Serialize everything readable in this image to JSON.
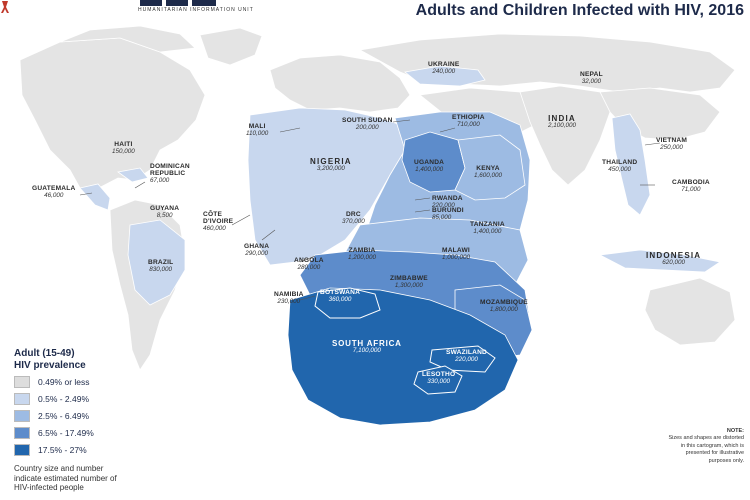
{
  "header": {
    "unit_name": "HUMANITARIAN INFORMATION UNIT",
    "title": "Adults and Children Infected with HIV, 2016"
  },
  "colors": {
    "ocean": "#ffffff",
    "land_no_data": "#e4e4e4",
    "prev_0": "#dddddd",
    "prev_1": "#c8d7ee",
    "prev_2": "#9dbbe3",
    "prev_3": "#5d8ccb",
    "prev_4": "#2166ad",
    "title_color": "#1d2a4a"
  },
  "countries": [
    {
      "name": "UKRAINE",
      "value": "240,000"
    },
    {
      "name": "NEPAL",
      "value": "32,000"
    },
    {
      "name": "INDIA",
      "value": "2,100,000"
    },
    {
      "name": "SOUTH SUDAN",
      "value": "200,000"
    },
    {
      "name": "ETHIOPIA",
      "value": "710,000"
    },
    {
      "name": "MALI",
      "value": "110,000"
    },
    {
      "name": "HAITI",
      "value": "150,000"
    },
    {
      "name": "DOMINICAN REPUBLIC",
      "value": "67,000"
    },
    {
      "name": "GUATEMALA",
      "value": "46,000"
    },
    {
      "name": "GUYANA",
      "value": "8,500"
    },
    {
      "name": "BRAZIL",
      "value": "830,000"
    },
    {
      "name": "NIGERIA",
      "value": "3,200,000"
    },
    {
      "name": "UGANDA",
      "value": "1,400,000"
    },
    {
      "name": "KENYA",
      "value": "1,600,000"
    },
    {
      "name": "VIETNAM",
      "value": "250,000"
    },
    {
      "name": "THAILAND",
      "value": "450,000"
    },
    {
      "name": "CAMBODIA",
      "value": "71,000"
    },
    {
      "name": "CÔTE D'IVOIRE",
      "value": "460,000"
    },
    {
      "name": "RWANDA",
      "value": "220,000"
    },
    {
      "name": "BURUNDI",
      "value": "85,000"
    },
    {
      "name": "DRC",
      "value": "370,000"
    },
    {
      "name": "TANZANIA",
      "value": "1,400,000"
    },
    {
      "name": "GHANA",
      "value": "290,000"
    },
    {
      "name": "ZAMBIA",
      "value": "1,200,000"
    },
    {
      "name": "MALAWI",
      "value": "1,000,000"
    },
    {
      "name": "ANGOLA",
      "value": "280,000"
    },
    {
      "name": "ZIMBABWE",
      "value": "1,300,000"
    },
    {
      "name": "INDONESIA",
      "value": "620,000"
    },
    {
      "name": "NAMIBIA",
      "value": "230,000"
    },
    {
      "name": "BOTSWANA",
      "value": "360,000"
    },
    {
      "name": "MOZAMBIQUE",
      "value": "1,800,000"
    },
    {
      "name": "SOUTH AFRICA",
      "value": "7,100,000"
    },
    {
      "name": "SWAZILAND",
      "value": "220,000"
    },
    {
      "name": "LESOTHO",
      "value": "330,000"
    }
  ],
  "legend": {
    "title_line1": "Adult (15-49)",
    "title_line2": "HIV prevalence",
    "ranges": [
      "0.49% or less",
      "0.5% - 2.49%",
      "2.5% - 6.49%",
      "6.5% - 17.49%",
      "17.5% - 27%"
    ],
    "explanation": "Country size and number indicate estimated number of HIV-infected people"
  },
  "note": {
    "heading": "NOTE:",
    "text": "Sizes and shapes are distorted in this cartogram, which is presented for illustrative purposes only."
  }
}
